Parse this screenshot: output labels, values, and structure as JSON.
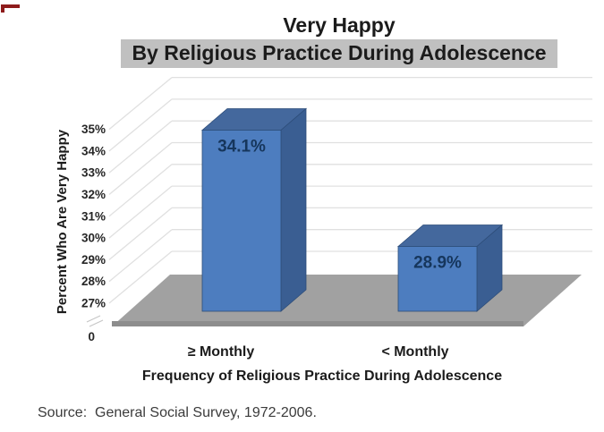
{
  "chart_data": {
    "type": "bar",
    "projection": "3d",
    "title": "Very Happy",
    "subtitle": "By Religious Practice During Adolescence",
    "categories": [
      "≥ Monthly",
      "< Monthly"
    ],
    "values": [
      34.1,
      28.9
    ],
    "value_labels": [
      "34.1%",
      "28.9%"
    ],
    "xlabel": "Frequency of Religious Practice During Adolescence",
    "ylabel": "Percent Who Are Very Happy",
    "y_ticks": [
      35,
      34,
      33,
      32,
      31,
      30,
      29,
      28,
      27
    ],
    "y_tick_labels": [
      "35%",
      "34%",
      "33%",
      "32%",
      "31%",
      "30%",
      "29%",
      "28%",
      "27%"
    ],
    "y_origin_label": "0",
    "y_axis_break": true,
    "ylim": [
      26,
      35.5
    ],
    "grid": "horizontal back-wall gridlines",
    "legend": "none",
    "source": "Source:  General Social Survey, 1972-2006.",
    "colors": {
      "bar_front": "#4d7dbf",
      "bar_top": "#44689d",
      "bar_side": "#3a5e92",
      "bar_outline": "#2d4d79",
      "floor": "#a1a1a1",
      "floor_front_edge": "#8d8d8d",
      "gridline": "#e0e0e0",
      "tick_text": "#262626",
      "value_label": "#16365c",
      "subtitle_highlight": "#c0c0c0",
      "text": "#1b1b1b",
      "axis_break_mark": "#c6c6c6",
      "corner_mark": "#8e1b1b"
    }
  }
}
